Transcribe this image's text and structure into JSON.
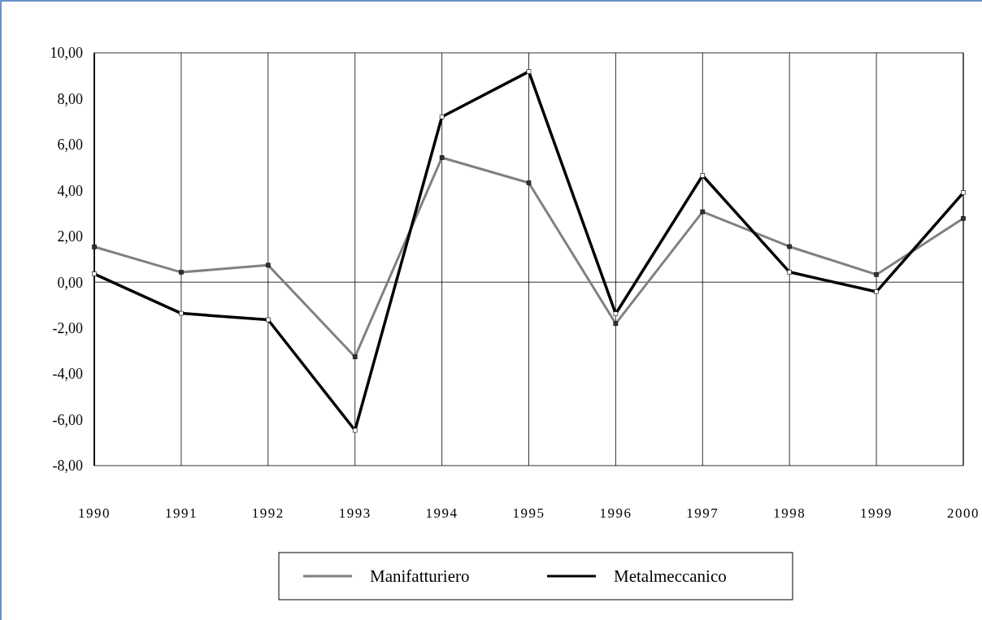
{
  "chart_data": {
    "type": "line",
    "categories": [
      "1990",
      "1991",
      "1992",
      "1993",
      "1994",
      "1995",
      "1996",
      "1997",
      "1998",
      "1999",
      "2000"
    ],
    "series": [
      {
        "name": "Manifatturiero",
        "color": "#808080",
        "values": [
          1.54,
          0.43,
          0.74,
          -3.26,
          5.43,
          4.33,
          -1.81,
          3.07,
          1.55,
          0.33,
          2.78
        ]
      },
      {
        "name": "Metalmeccanico",
        "color": "#000000",
        "values": [
          0.36,
          -1.36,
          -1.64,
          -6.46,
          7.21,
          9.18,
          -1.38,
          4.65,
          0.44,
          -0.42,
          3.9
        ]
      }
    ],
    "ylim": [
      -8,
      10
    ],
    "yticks": [
      {
        "value": -8,
        "label": "-8,00"
      },
      {
        "value": -6,
        "label": "-6,00"
      },
      {
        "value": -4,
        "label": "-4,00"
      },
      {
        "value": -2,
        "label": "-2,00"
      },
      {
        "value": 0,
        "label": "0,00"
      },
      {
        "value": 2,
        "label": "2,00"
      },
      {
        "value": 4,
        "label": "4,00"
      },
      {
        "value": 6,
        "label": "6,00"
      },
      {
        "value": 8,
        "label": "8,00"
      },
      {
        "value": 10,
        "label": "10,00"
      }
    ],
    "ref_lines": [
      {
        "axis": "y",
        "value": 0,
        "color": "#000000"
      }
    ],
    "grid": "x",
    "legend": "bottom",
    "marker": "square",
    "line_style": "solid"
  }
}
